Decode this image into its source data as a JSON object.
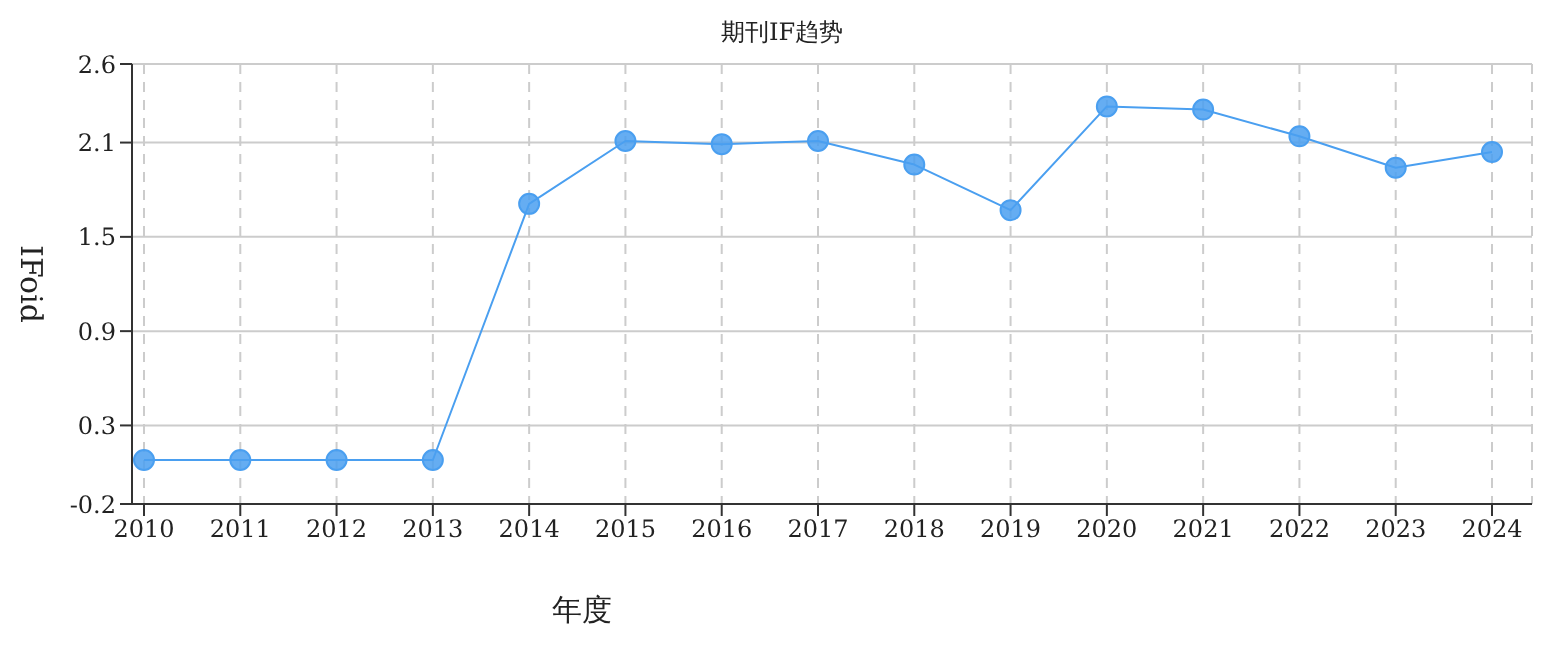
{
  "chart_data": {
    "type": "line",
    "title": "期刊IF趋势",
    "xlabel": "年度",
    "ylabel": "IFoid",
    "categories": [
      "2010",
      "2011",
      "2012",
      "2013",
      "2014",
      "2015",
      "2016",
      "2017",
      "2018",
      "2019",
      "2020",
      "2021",
      "2022",
      "2023",
      "2024"
    ],
    "series": [
      {
        "color": "#4a9ff0",
        "values": [
          0.08,
          0.08,
          0.08,
          0.08,
          1.71,
          2.11,
          2.09,
          2.11,
          1.96,
          1.67,
          2.33,
          2.31,
          2.14,
          1.94,
          2.04
        ]
      }
    ],
    "ylim": [
      -0.2,
      2.6
    ],
    "yticks": [
      -0.2,
      0.3,
      0.9,
      1.5,
      2.1,
      2.6
    ],
    "grid": true,
    "marker": "circle",
    "line_style": "solid",
    "legend": false
  }
}
